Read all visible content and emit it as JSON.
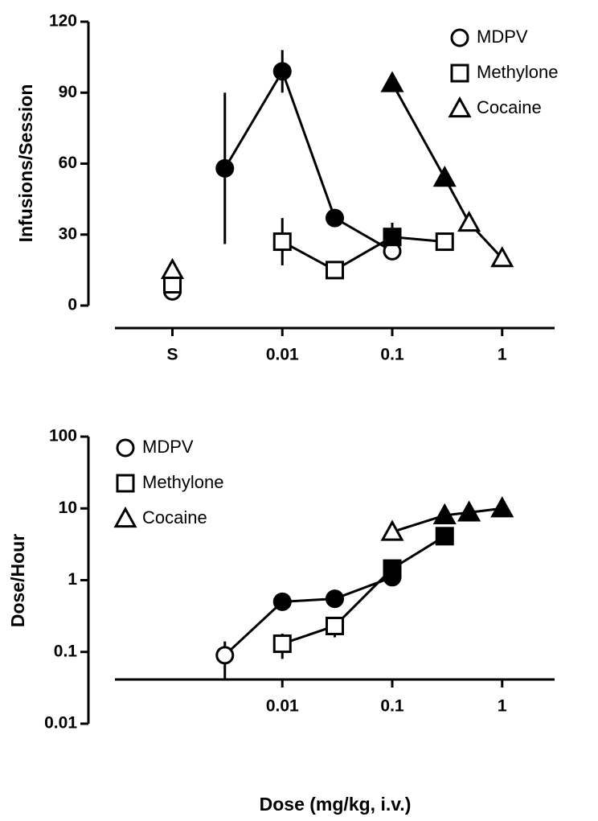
{
  "chart_data": [
    {
      "type": "line",
      "ylabel": "Infusions/Session",
      "xlog": true,
      "ylog": false,
      "xlim": [
        0.0003,
        3
      ],
      "ylim": [
        0,
        120
      ],
      "xticks": [
        {
          "value": 0.001,
          "label": "S"
        },
        0.01,
        0.1,
        1
      ],
      "yticks": [
        0,
        30,
        60,
        90,
        120
      ],
      "legend": "top-right",
      "series": [
        {
          "name": "MDPV",
          "marker": "circle",
          "color": "#000000",
          "x": [
            0.001,
            0.003,
            0.01,
            0.03,
            0.1
          ],
          "values": [
            6,
            58,
            99,
            37,
            23
          ],
          "errors": [
            null,
            32,
            9,
            null,
            null
          ],
          "filled": [
            false,
            true,
            true,
            true,
            false
          ]
        },
        {
          "name": "Methylone",
          "marker": "square",
          "color": "#000000",
          "x": [
            0.001,
            0.01,
            0.03,
            0.1,
            0.3
          ],
          "values": [
            9,
            27,
            15,
            29,
            27
          ],
          "errors": [
            null,
            10,
            null,
            6,
            null
          ],
          "filled": [
            false,
            false,
            false,
            true,
            false
          ]
        },
        {
          "name": "Cocaine",
          "marker": "triangle",
          "color": "#000000",
          "x": [
            0.001,
            0.1,
            0.3,
            0.5,
            1
          ],
          "values": [
            15,
            94,
            54,
            35,
            20
          ],
          "errors": [
            null,
            null,
            null,
            null,
            null
          ],
          "filled": [
            false,
            true,
            true,
            false,
            false
          ]
        }
      ]
    },
    {
      "type": "line",
      "ylabel": "Dose/Hour",
      "xlabel": "Dose (mg/kg, i.v.)",
      "xlog": true,
      "ylog": true,
      "xlim": [
        0.0003,
        3
      ],
      "ylim": [
        0.01,
        100
      ],
      "xticks": [
        0.01,
        0.1,
        1
      ],
      "yticks": [
        0.01,
        0.1,
        1,
        10,
        100
      ],
      "legend": "top-left",
      "series": [
        {
          "name": "MDPV",
          "marker": "circle",
          "color": "#000000",
          "x": [
            0.003,
            0.01,
            0.03,
            0.1
          ],
          "values": [
            0.09,
            0.5,
            0.55,
            1.1
          ],
          "errors": [
            0.05,
            null,
            null,
            null
          ],
          "filled": [
            false,
            true,
            true,
            true
          ]
        },
        {
          "name": "Methylone",
          "marker": "square",
          "color": "#000000",
          "x": [
            0.01,
            0.03,
            0.1,
            0.3
          ],
          "values": [
            0.13,
            0.23,
            1.45,
            4.1
          ],
          "errors": [
            0.05,
            0.07,
            null,
            null
          ],
          "filled": [
            false,
            false,
            true,
            true
          ]
        },
        {
          "name": "Cocaine",
          "marker": "triangle",
          "color": "#000000",
          "x": [
            0.1,
            0.3,
            0.5,
            1
          ],
          "values": [
            4.7,
            8,
            8.75,
            10
          ],
          "errors": [
            null,
            null,
            null,
            null
          ],
          "filled": [
            false,
            true,
            true,
            true
          ]
        }
      ]
    }
  ]
}
